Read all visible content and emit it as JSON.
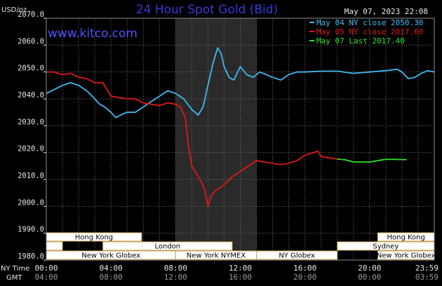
{
  "header": {
    "title": "24 Hour Spot Gold (Bid)",
    "unit": "USD/oz",
    "timestamp": "May 07, 2023 22:08",
    "site": "www.kitco.com"
  },
  "colors": {
    "title": "#3838d8",
    "site": "#5050ff",
    "grid": "#707070",
    "text": "#e8e8e8",
    "session_fill": "#ffffff",
    "session_border": "#c8a050",
    "nymex_shade": "#2a2a2a"
  },
  "chart_data": {
    "type": "line",
    "title": "24 Hour Spot Gold (Bid)",
    "ylabel": "USD/oz",
    "ylim": [
      1980,
      2070
    ],
    "xlim": [
      0,
      24
    ],
    "grid": true,
    "legend_position": "top-right",
    "y_ticks": [
      "2070.0",
      "2060.0",
      "2050.0",
      "2040.0",
      "2030.0",
      "2020.0",
      "2010.0",
      "2000.0",
      "1990.0",
      "1980.0"
    ],
    "x_ticks_ny": [
      "00:00",
      "04:00",
      "08:00",
      "12:00",
      "16:00",
      "20:00",
      "23:59"
    ],
    "x_ticks_gmt": [
      "04:00",
      "08:00",
      "12:00",
      "16:00",
      "20:00",
      "00:00",
      "03:59"
    ],
    "x_axis_names": [
      "NY Time",
      "GMT"
    ],
    "series": [
      {
        "name": "May 04 NY close 2050.30",
        "color": "#40b8f0",
        "points": [
          [
            0,
            2042
          ],
          [
            0.5,
            2043.5
          ],
          [
            1.0,
            2045
          ],
          [
            1.5,
            2046
          ],
          [
            2.0,
            2045
          ],
          [
            2.5,
            2043
          ],
          [
            3.0,
            2040
          ],
          [
            3.3,
            2038
          ],
          [
            3.6,
            2037
          ],
          [
            4.0,
            2035
          ],
          [
            4.3,
            2033
          ],
          [
            4.6,
            2034
          ],
          [
            5.0,
            2035
          ],
          [
            5.5,
            2035
          ],
          [
            6.0,
            2037
          ],
          [
            6.5,
            2039
          ],
          [
            7.0,
            2041
          ],
          [
            7.5,
            2043
          ],
          [
            8.0,
            2042
          ],
          [
            8.5,
            2040
          ],
          [
            9.0,
            2036
          ],
          [
            9.4,
            2034
          ],
          [
            9.7,
            2037
          ],
          [
            10.0,
            2045
          ],
          [
            10.3,
            2053
          ],
          [
            10.6,
            2059
          ],
          [
            10.8,
            2057
          ],
          [
            11.0,
            2052
          ],
          [
            11.3,
            2048
          ],
          [
            11.6,
            2047
          ],
          [
            12.0,
            2052
          ],
          [
            12.4,
            2049
          ],
          [
            12.8,
            2048
          ],
          [
            13.2,
            2050
          ],
          [
            13.6,
            2049
          ],
          [
            14.0,
            2048
          ],
          [
            14.5,
            2047
          ],
          [
            15.0,
            2049
          ],
          [
            15.5,
            2050
          ],
          [
            16.0,
            2050
          ],
          [
            17.0,
            2050.3
          ],
          [
            18.0,
            2050.3
          ],
          [
            19.0,
            2049.5
          ],
          [
            20.0,
            2050
          ],
          [
            21.0,
            2050.5
          ],
          [
            21.7,
            2051
          ],
          [
            22.0,
            2050
          ],
          [
            22.4,
            2047.5
          ],
          [
            22.8,
            2048
          ],
          [
            23.2,
            2049.5
          ],
          [
            23.6,
            2050.5
          ],
          [
            24.0,
            2050
          ]
        ]
      },
      {
        "name": "May 05 NY close 2017.60",
        "color": "#e01818",
        "points": [
          [
            0,
            2050
          ],
          [
            0.5,
            2050
          ],
          [
            1.0,
            2049
          ],
          [
            1.5,
            2049.5
          ],
          [
            2.0,
            2048
          ],
          [
            2.5,
            2047.5
          ],
          [
            3.0,
            2046
          ],
          [
            3.5,
            2046
          ],
          [
            4.0,
            2041
          ],
          [
            4.5,
            2040.5
          ],
          [
            5.0,
            2040
          ],
          [
            5.5,
            2040
          ],
          [
            6.0,
            2038.5
          ],
          [
            6.5,
            2038
          ],
          [
            7.0,
            2037.5
          ],
          [
            7.5,
            2038.5
          ],
          [
            8.0,
            2038
          ],
          [
            8.3,
            2037
          ],
          [
            8.6,
            2033
          ],
          [
            8.8,
            2022
          ],
          [
            9.0,
            2015
          ],
          [
            9.3,
            2012
          ],
          [
            9.6,
            2009
          ],
          [
            9.8,
            2006
          ],
          [
            10.0,
            2000
          ],
          [
            10.2,
            2004
          ],
          [
            10.5,
            2006
          ],
          [
            11.0,
            2008
          ],
          [
            11.5,
            2011
          ],
          [
            12.0,
            2013
          ],
          [
            12.5,
            2015
          ],
          [
            13.0,
            2017
          ],
          [
            13.5,
            2016.5
          ],
          [
            14.0,
            2016
          ],
          [
            14.5,
            2015.5
          ],
          [
            15.0,
            2016
          ],
          [
            15.5,
            2017
          ],
          [
            16.0,
            2019
          ],
          [
            16.5,
            2020
          ],
          [
            16.8,
            2020.5
          ],
          [
            17.0,
            2018.5
          ],
          [
            17.5,
            2018
          ],
          [
            18.0,
            2017.6
          ]
        ]
      },
      {
        "name": "May 07 Last 2017.40",
        "color": "#30e030",
        "points": [
          [
            18.0,
            2017.6
          ],
          [
            18.5,
            2017.3
          ],
          [
            19.0,
            2016.5
          ],
          [
            19.5,
            2016.5
          ],
          [
            20.0,
            2016.5
          ],
          [
            20.5,
            2017
          ],
          [
            21.0,
            2017.5
          ],
          [
            21.5,
            2017.5
          ],
          [
            22.0,
            2017.4
          ],
          [
            22.3,
            2017.4
          ]
        ]
      }
    ],
    "sessions": [
      {
        "label": "Hong Kong",
        "row": 0,
        "start": 0,
        "end": 5.9
      },
      {
        "label": "Hong Kong",
        "row": 0,
        "start": 20.5,
        "end": 24
      },
      {
        "label": "",
        "row": 1,
        "start": 0,
        "end": 1.0
      },
      {
        "label": "London",
        "row": 1,
        "start": 3.5,
        "end": 11.5
      },
      {
        "label": "Sydney",
        "row": 1,
        "start": 18.0,
        "end": 24
      },
      {
        "label": "New York Globex",
        "row": 2,
        "start": 0,
        "end": 8.0
      },
      {
        "label": "New York NYMEX",
        "row": 2,
        "start": 8.0,
        "end": 13.0
      },
      {
        "label": "NY Globex",
        "row": 2,
        "start": 13.0,
        "end": 18.0
      },
      {
        "label": "New York Globex",
        "row": 2,
        "start": 20.5,
        "end": 24
      }
    ],
    "nymex_shade": [
      8.0,
      13.0
    ]
  }
}
